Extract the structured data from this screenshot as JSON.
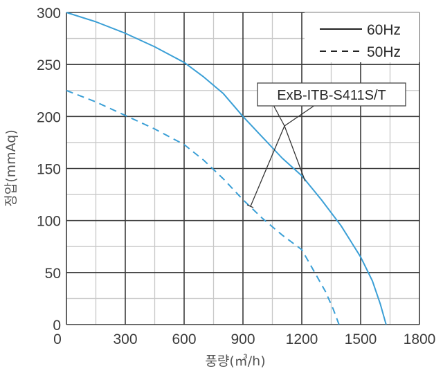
{
  "chart_data": {
    "type": "line",
    "title": "",
    "xlabel": "풍량(㎥/h)",
    "ylabel": "정압(mmAq)",
    "xlim": [
      0,
      1800
    ],
    "ylim": [
      0,
      300
    ],
    "x_ticks": [
      "0",
      "300",
      "600",
      "900",
      "1200",
      "1500",
      "1800"
    ],
    "y_ticks": [
      "0",
      "50",
      "100",
      "150",
      "200",
      "250",
      "300"
    ],
    "grid": true,
    "legend_position": "upper right",
    "annotation": "ExB-ITB-S411S/T",
    "series": [
      {
        "name": "60Hz",
        "style": "solid",
        "color": "#3a9fd6",
        "x": [
          0,
          150,
          300,
          450,
          600,
          700,
          800,
          900,
          1000,
          1100,
          1200,
          1300,
          1400,
          1500,
          1560,
          1600,
          1630
        ],
        "y": [
          300,
          291,
          280,
          267,
          252,
          238,
          222,
          200,
          180,
          160,
          143,
          120,
          95,
          65,
          42,
          20,
          0
        ]
      },
      {
        "name": "50Hz",
        "style": "dashed",
        "color": "#3a9fd6",
        "x": [
          0,
          150,
          300,
          450,
          600,
          700,
          800,
          900,
          1000,
          1100,
          1200,
          1260,
          1320,
          1360,
          1390
        ],
        "y": [
          225,
          214,
          201,
          188,
          173,
          158,
          140,
          120,
          102,
          86,
          72,
          52,
          32,
          15,
          0
        ]
      }
    ]
  },
  "legend": {
    "items": [
      {
        "label": "60Hz",
        "style": "solid"
      },
      {
        "label": "50Hz",
        "style": "dashed"
      }
    ]
  },
  "axes": {
    "xlabel": "풍량(㎥/h)",
    "ylabel": "정압(mmAq)"
  },
  "model_label": "ExB-ITB-S411S/T",
  "colors": {
    "curve": "#3a9fd6",
    "major_grid": "#3a3a3a",
    "minor_grid": "#c8c8c8"
  }
}
